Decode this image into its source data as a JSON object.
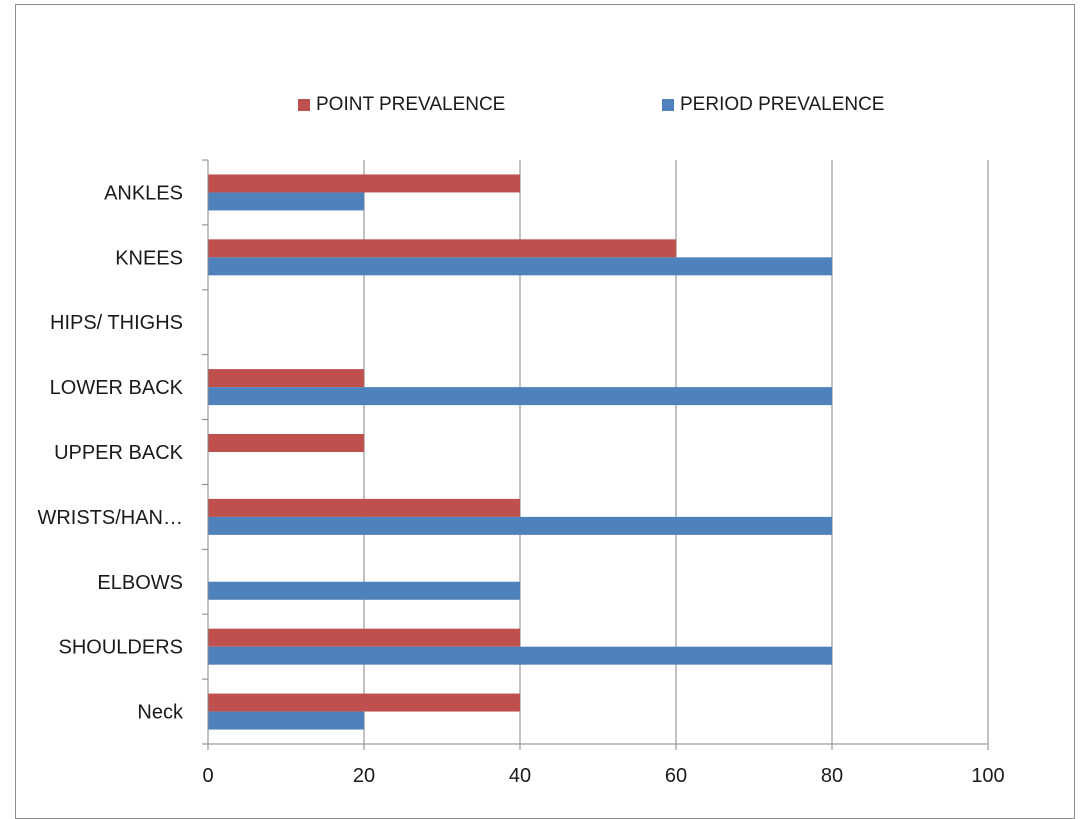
{
  "chart_data": {
    "type": "bar",
    "orientation": "horizontal",
    "categories": [
      "Neck",
      "SHOULDERS",
      "ELBOWS",
      "WRISTS/HAN…",
      "UPPER BACK",
      "LOWER BACK",
      "HIPS/ THIGHS",
      "KNEES",
      "ANKLES"
    ],
    "series": [
      {
        "name": "POINT PREVALENCE",
        "color": "#c0504d",
        "values": [
          40,
          40,
          0,
          40,
          20,
          20,
          0,
          60,
          40
        ]
      },
      {
        "name": "PERIOD PREVALENCE",
        "color": "#4f81bd",
        "values": [
          20,
          80,
          40,
          80,
          0,
          80,
          0,
          80,
          20
        ]
      }
    ],
    "xlim": [
      0,
      100
    ],
    "x_ticks": [
      0,
      20,
      40,
      60,
      80,
      100
    ],
    "grid": true,
    "legend_position": "top"
  }
}
